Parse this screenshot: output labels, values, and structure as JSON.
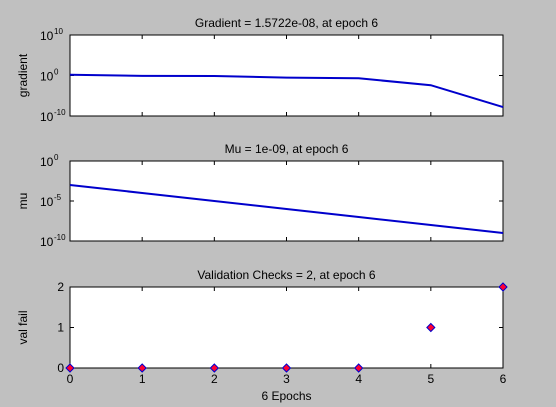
{
  "chart_data": [
    {
      "type": "line",
      "title": "Gradient = 1.5722e-08, at epoch 6",
      "ylabel": "gradient",
      "xlabel": "",
      "yscale": "log",
      "xlim": [
        0,
        6
      ],
      "ylim_exp": [
        -10,
        10
      ],
      "yticks": [
        {
          "base": "10",
          "exp": "10",
          "e": 10
        },
        {
          "base": "10",
          "exp": "0",
          "e": 0
        },
        {
          "base": "10",
          "exp": "-10",
          "e": -10
        }
      ],
      "x": [
        0,
        1,
        2,
        3,
        4,
        5,
        6
      ],
      "y": [
        1.5,
        0.8,
        0.75,
        0.3,
        0.2,
        0.004,
        1.5722e-08
      ],
      "line_color": "#0000cc",
      "grid": false
    },
    {
      "type": "line",
      "title": "Mu = 1e-09, at epoch 6",
      "ylabel": "mu",
      "xlabel": "",
      "yscale": "log",
      "xlim": [
        0,
        6
      ],
      "ylim_exp": [
        -10,
        0
      ],
      "yticks": [
        {
          "base": "10",
          "exp": "0",
          "e": 0
        },
        {
          "base": "10",
          "exp": "-5",
          "e": -5
        },
        {
          "base": "10",
          "exp": "-10",
          "e": -10
        }
      ],
      "x": [
        0,
        1,
        2,
        3,
        4,
        5,
        6
      ],
      "y": [
        0.001,
        0.0001,
        1e-05,
        1e-06,
        1e-07,
        1e-08,
        1e-09
      ],
      "line_color": "#0000cc",
      "grid": false
    },
    {
      "type": "scatter",
      "title": "Validation Checks = 2, at epoch 6",
      "ylabel": "val fail",
      "xlabel": "6 Epochs",
      "xlim": [
        0,
        6
      ],
      "ylim": [
        0,
        2
      ],
      "xticks": [
        "0",
        "1",
        "2",
        "3",
        "4",
        "5",
        "6"
      ],
      "yticks": [
        "0",
        "1",
        "2"
      ],
      "x": [
        0,
        1,
        2,
        3,
        4,
        5,
        6
      ],
      "y": [
        0,
        0,
        0,
        0,
        0,
        1,
        2
      ],
      "marker": "diamond",
      "marker_fill": "#ff0033",
      "marker_edge": "#0000cc",
      "grid": false
    }
  ]
}
